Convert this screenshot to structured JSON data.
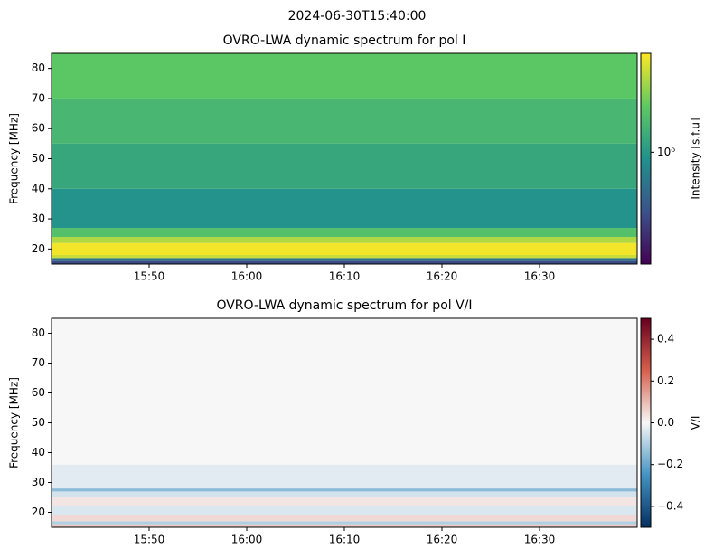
{
  "title": "2024-06-30T15:40:00",
  "chart_data": [
    {
      "type": "heatmap",
      "title": "OVRO-LWA dynamic spectrum for pol I",
      "ylabel": "Frequency [MHz]",
      "xlim": [
        940,
        1000
      ],
      "xticks": [
        {
          "value": 950,
          "label": "15:50"
        },
        {
          "value": 960,
          "label": "16:00"
        },
        {
          "value": 970,
          "label": "16:10"
        },
        {
          "value": 980,
          "label": "16:20"
        },
        {
          "value": 990,
          "label": "16:30"
        }
      ],
      "ylim": [
        15,
        85
      ],
      "yticks": [
        20,
        30,
        40,
        50,
        60,
        70,
        80
      ],
      "bands": [
        {
          "range": [
            15,
            16
          ],
          "value": 0.5
        },
        {
          "range": [
            16,
            17
          ],
          "value": 0.7
        },
        {
          "range": [
            17,
            18
          ],
          "value": 2.4
        },
        {
          "range": [
            18,
            22
          ],
          "value": 2.8
        },
        {
          "range": [
            22,
            24
          ],
          "value": 2.2
        },
        {
          "range": [
            24,
            27
          ],
          "value": 1.5
        },
        {
          "range": [
            27,
            40
          ],
          "value": 0.95
        },
        {
          "range": [
            40,
            55
          ],
          "value": 1.15
        },
        {
          "range": [
            55,
            70
          ],
          "value": 1.35
        },
        {
          "range": [
            70,
            85
          ],
          "value": 1.6
        }
      ],
      "colorbar": {
        "label": "Intensity [s.f.u]",
        "scale": "log",
        "cmap": "viridis",
        "lim": [
          0.3,
          2.9
        ],
        "ticks": [
          {
            "value": 1,
            "label": "10⁰"
          }
        ]
      }
    },
    {
      "type": "heatmap",
      "title": "OVRO-LWA dynamic spectrum for pol V/I",
      "ylabel": "Frequency [MHz]",
      "xlim": [
        940,
        1000
      ],
      "xticks": [
        {
          "value": 950,
          "label": "15:50"
        },
        {
          "value": 960,
          "label": "16:00"
        },
        {
          "value": 970,
          "label": "16:10"
        },
        {
          "value": 980,
          "label": "16:20"
        },
        {
          "value": 990,
          "label": "16:30"
        }
      ],
      "ylim": [
        15,
        85
      ],
      "yticks": [
        20,
        30,
        40,
        50,
        60,
        70,
        80
      ],
      "bands": [
        {
          "range": [
            15,
            16
          ],
          "value": 0.08
        },
        {
          "range": [
            16,
            17
          ],
          "value": -0.1
        },
        {
          "range": [
            17,
            19
          ],
          "value": 0.05
        },
        {
          "range": [
            19,
            22
          ],
          "value": -0.04
        },
        {
          "range": [
            22,
            25
          ],
          "value": 0.03
        },
        {
          "range": [
            25,
            27
          ],
          "value": -0.05
        },
        {
          "range": [
            27,
            28
          ],
          "value": -0.15
        },
        {
          "range": [
            28,
            36
          ],
          "value": -0.03
        },
        {
          "range": [
            36,
            85
          ],
          "value": 0
        }
      ],
      "colorbar": {
        "label": "V/I",
        "scale": "linear",
        "cmap": "RdBu_r",
        "lim": [
          -0.5,
          0.5
        ],
        "ticks": [
          {
            "value": -0.4,
            "label": "−0.4"
          },
          {
            "value": -0.2,
            "label": "−0.2"
          },
          {
            "value": 0,
            "label": "0.0"
          },
          {
            "value": 0.2,
            "label": "0.2"
          },
          {
            "value": 0.4,
            "label": "0.4"
          }
        ]
      }
    }
  ]
}
